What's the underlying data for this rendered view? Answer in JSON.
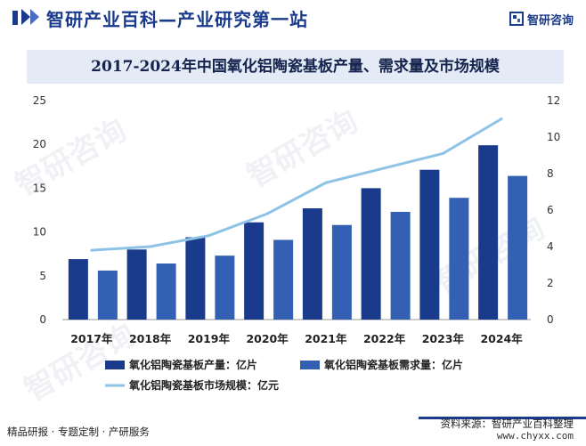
{
  "header": {
    "title": "智研产业百科—产业研究第一站",
    "brand_name": "智研咨询",
    "accent_color": "#1a3a8c"
  },
  "chart_data": {
    "type": "bar",
    "title": "2017-2024年中国氧化铝陶瓷基板产量、需求量及市场规模",
    "categories": [
      "2017年",
      "2018年",
      "2019年",
      "2020年",
      "2021年",
      "2022年",
      "2023年",
      "2024年"
    ],
    "series": [
      {
        "name": "氧化铝陶瓷基板产量：亿片",
        "type": "bar",
        "axis": "left",
        "color": "#1a3a8c",
        "values": [
          6.9,
          8.0,
          9.4,
          11.1,
          12.7,
          15.0,
          17.1,
          19.9
        ]
      },
      {
        "name": "氧化铝陶瓷基板需求量：亿片",
        "type": "bar",
        "axis": "left",
        "color": "#3360b2",
        "values": [
          5.6,
          6.4,
          7.3,
          9.1,
          10.8,
          12.3,
          13.9,
          16.4
        ]
      },
      {
        "name": "氧化铝陶瓷基板市场规模：亿元",
        "type": "line",
        "axis": "right",
        "color": "#8ec3e6",
        "values": [
          3.8,
          4.0,
          4.6,
          5.8,
          7.5,
          8.3,
          9.1,
          11.0
        ]
      }
    ],
    "y_left": {
      "min": 0,
      "max": 25,
      "ticks": [
        "0",
        "5",
        "10",
        "15",
        "20",
        "25"
      ]
    },
    "y_right": {
      "min": 0,
      "max": 12,
      "ticks": [
        "0",
        "2",
        "4",
        "6",
        "8",
        "10",
        "12"
      ]
    },
    "grid": false,
    "legend_position": "bottom"
  },
  "footer": {
    "left_text": "精品研报 · 专题定制 · 产研服务",
    "source": "资料来源：智研产业百科整理",
    "url": "www.chyxx.com"
  }
}
